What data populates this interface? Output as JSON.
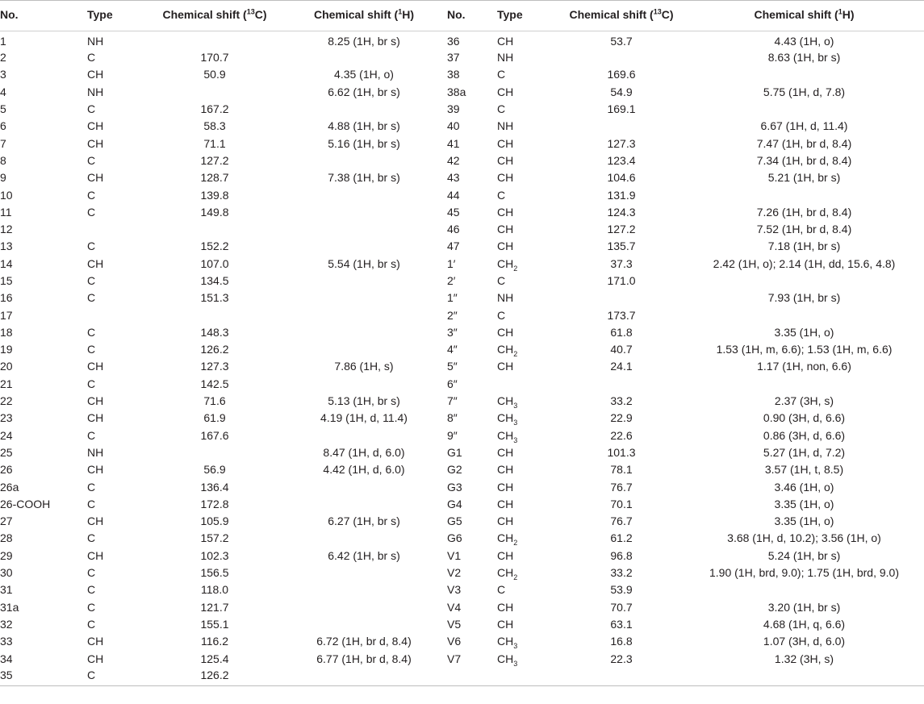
{
  "table": {
    "headers": {
      "no": "No.",
      "type": "Type",
      "c13_prefix": "Chemical shift (",
      "c13_sup": "13",
      "c13_suffix": "C)",
      "h1_prefix": "Chemical shift (",
      "h1_sup": "1",
      "h1_suffix": "H)"
    },
    "rows": [
      {
        "no": "1",
        "type": "NH",
        "typesub": "",
        "c13": "",
        "h1": "8.25 (1H, br s)",
        "no2": "36",
        "type2": "CH",
        "type2sub": "",
        "c13b": "53.7",
        "h1b": "4.43 (1H, o)"
      },
      {
        "no": "2",
        "type": "C",
        "typesub": "",
        "c13": "170.7",
        "h1": "",
        "no2": "37",
        "type2": "NH",
        "type2sub": "",
        "c13b": "",
        "h1b": "8.63 (1H, br s)"
      },
      {
        "no": "3",
        "type": "CH",
        "typesub": "",
        "c13": "50.9",
        "h1": "4.35 (1H, o)",
        "no2": "38",
        "type2": "C",
        "type2sub": "",
        "c13b": "169.6",
        "h1b": ""
      },
      {
        "no": "4",
        "type": "NH",
        "typesub": "",
        "c13": "",
        "h1": "6.62 (1H, br s)",
        "no2": "38a",
        "type2": "CH",
        "type2sub": "",
        "c13b": "54.9",
        "h1b": "5.75 (1H, d, 7.8)"
      },
      {
        "no": "5",
        "type": "C",
        "typesub": "",
        "c13": "167.2",
        "h1": "",
        "no2": "39",
        "type2": "C",
        "type2sub": "",
        "c13b": "169.1",
        "h1b": ""
      },
      {
        "no": "6",
        "type": "CH",
        "typesub": "",
        "c13": "58.3",
        "h1": "4.88 (1H, br s)",
        "no2": "40",
        "type2": "NH",
        "type2sub": "",
        "c13b": "",
        "h1b": "6.67 (1H, d, 11.4)"
      },
      {
        "no": "7",
        "type": "CH",
        "typesub": "",
        "c13": "71.1",
        "h1": "5.16 (1H, br s)",
        "no2": "41",
        "type2": "CH",
        "type2sub": "",
        "c13b": "127.3",
        "h1b": "7.47 (1H, br d, 8.4)"
      },
      {
        "no": "8",
        "type": "C",
        "typesub": "",
        "c13": "127.2",
        "h1": "",
        "no2": "42",
        "type2": "CH",
        "type2sub": "",
        "c13b": "123.4",
        "h1b": "7.34 (1H, br d, 8.4)"
      },
      {
        "no": "9",
        "type": "CH",
        "typesub": "",
        "c13": "128.7",
        "h1": "7.38 (1H, br s)",
        "no2": "43",
        "type2": "CH",
        "type2sub": "",
        "c13b": "104.6",
        "h1b": "5.21 (1H, br s)"
      },
      {
        "no": "10",
        "type": "C",
        "typesub": "",
        "c13": "139.8",
        "h1": "",
        "no2": "44",
        "type2": "C",
        "type2sub": "",
        "c13b": "131.9",
        "h1b": ""
      },
      {
        "no": "11",
        "type": "C",
        "typesub": "",
        "c13": "149.8",
        "h1": "",
        "no2": "45",
        "type2": "CH",
        "type2sub": "",
        "c13b": "124.3",
        "h1b": "7.26 (1H, br d, 8.4)"
      },
      {
        "no": "12",
        "type": "",
        "typesub": "",
        "c13": "",
        "h1": "",
        "no2": "46",
        "type2": "CH",
        "type2sub": "",
        "c13b": "127.2",
        "h1b": "7.52 (1H, br d, 8.4)"
      },
      {
        "no": "13",
        "type": "C",
        "typesub": "",
        "c13": "152.2",
        "h1": "",
        "no2": "47",
        "type2": "CH",
        "type2sub": "",
        "c13b": "135.7",
        "h1b": "7.18 (1H, br s)"
      },
      {
        "no": "14",
        "type": "CH",
        "typesub": "",
        "c13": "107.0",
        "h1": "5.54 (1H, br s)",
        "no2": "1′",
        "type2": "CH",
        "type2sub": "2",
        "c13b": "37.3",
        "h1b": "2.42 (1H, o); 2.14 (1H, dd, 15.6, 4.8)"
      },
      {
        "no": "15",
        "type": "C",
        "typesub": "",
        "c13": "134.5",
        "h1": "",
        "no2": "2′",
        "type2": "C",
        "type2sub": "",
        "c13b": "171.0",
        "h1b": ""
      },
      {
        "no": "16",
        "type": "C",
        "typesub": "",
        "c13": "151.3",
        "h1": "",
        "no2": "1″",
        "type2": "NH",
        "type2sub": "",
        "c13b": "",
        "h1b": "7.93 (1H, br s)"
      },
      {
        "no": "17",
        "type": "",
        "typesub": "",
        "c13": "",
        "h1": "",
        "no2": "2″",
        "type2": "C",
        "type2sub": "",
        "c13b": "173.7",
        "h1b": ""
      },
      {
        "no": "18",
        "type": "C",
        "typesub": "",
        "c13": "148.3",
        "h1": "",
        "no2": "3″",
        "type2": "CH",
        "type2sub": "",
        "c13b": "61.8",
        "h1b": "3.35 (1H, o)"
      },
      {
        "no": "19",
        "type": "C",
        "typesub": "",
        "c13": "126.2",
        "h1": "",
        "no2": "4″",
        "type2": "CH",
        "type2sub": "2",
        "c13b": "40.7",
        "h1b": "1.53 (1H, m, 6.6); 1.53 (1H, m, 6.6)"
      },
      {
        "no": "20",
        "type": "CH",
        "typesub": "",
        "c13": "127.3",
        "h1": "7.86 (1H, s)",
        "no2": "5″",
        "type2": "CH",
        "type2sub": "",
        "c13b": "24.1",
        "h1b": "1.17 (1H, non, 6.6)"
      },
      {
        "no": "21",
        "type": "C",
        "typesub": "",
        "c13": "142.5",
        "h1": "",
        "no2": "6″",
        "type2": "",
        "type2sub": "",
        "c13b": "",
        "h1b": ""
      },
      {
        "no": "22",
        "type": "CH",
        "typesub": "",
        "c13": "71.6",
        "h1": "5.13 (1H, br s)",
        "no2": "7″",
        "type2": "CH",
        "type2sub": "3",
        "c13b": "33.2",
        "h1b": "2.37 (3H, s)"
      },
      {
        "no": "23",
        "type": "CH",
        "typesub": "",
        "c13": "61.9",
        "h1": "4.19 (1H, d, 11.4)",
        "no2": "8″",
        "type2": "CH",
        "type2sub": "3",
        "c13b": "22.9",
        "h1b": "0.90 (3H, d, 6.6)"
      },
      {
        "no": "24",
        "type": "C",
        "typesub": "",
        "c13": "167.6",
        "h1": "",
        "no2": "9″",
        "type2": "CH",
        "type2sub": "3",
        "c13b": "22.6",
        "h1b": "0.86 (3H, d, 6.6)"
      },
      {
        "no": "25",
        "type": "NH",
        "typesub": "",
        "c13": "",
        "h1": "8.47 (1H, d, 6.0)",
        "no2": "G1",
        "type2": "CH",
        "type2sub": "",
        "c13b": "101.3",
        "h1b": "5.27 (1H, d, 7.2)"
      },
      {
        "no": "26",
        "type": "CH",
        "typesub": "",
        "c13": "56.9",
        "h1": "4.42 (1H, d, 6.0)",
        "no2": "G2",
        "type2": "CH",
        "type2sub": "",
        "c13b": "78.1",
        "h1b": "3.57 (1H, t, 8.5)"
      },
      {
        "no": "26a",
        "type": "C",
        "typesub": "",
        "c13": "136.4",
        "h1": "",
        "no2": "G3",
        "type2": "CH",
        "type2sub": "",
        "c13b": "76.7",
        "h1b": "3.46 (1H, o)"
      },
      {
        "no": "26-COOH",
        "type": "C",
        "typesub": "",
        "c13": "172.8",
        "h1": "",
        "no2": "G4",
        "type2": "CH",
        "type2sub": "",
        "c13b": "70.1",
        "h1b": "3.35 (1H, o)"
      },
      {
        "no": "27",
        "type": "CH",
        "typesub": "",
        "c13": "105.9",
        "h1": "6.27 (1H, br s)",
        "no2": "G5",
        "type2": "CH",
        "type2sub": "",
        "c13b": "76.7",
        "h1b": "3.35 (1H, o)"
      },
      {
        "no": "28",
        "type": "C",
        "typesub": "",
        "c13": "157.2",
        "h1": "",
        "no2": "G6",
        "type2": "CH",
        "type2sub": "2",
        "c13b": "61.2",
        "h1b": "3.68 (1H, d, 10.2); 3.56 (1H, o)"
      },
      {
        "no": "29",
        "type": "CH",
        "typesub": "",
        "c13": "102.3",
        "h1": "6.42 (1H, br s)",
        "no2": "V1",
        "type2": "CH",
        "type2sub": "",
        "c13b": "96.8",
        "h1b": "5.24 (1H, br s)"
      },
      {
        "no": "30",
        "type": "C",
        "typesub": "",
        "c13": "156.5",
        "h1": "",
        "no2": "V2",
        "type2": "CH",
        "type2sub": "2",
        "c13b": "33.2",
        "h1b": "1.90 (1H, brd, 9.0); 1.75 (1H, brd, 9.0)"
      },
      {
        "no": "31",
        "type": "C",
        "typesub": "",
        "c13": "118.0",
        "h1": "",
        "no2": "V3",
        "type2": "C",
        "type2sub": "",
        "c13b": "53.9",
        "h1b": ""
      },
      {
        "no": "31a",
        "type": "C",
        "typesub": "",
        "c13": "121.7",
        "h1": "",
        "no2": "V4",
        "type2": "CH",
        "type2sub": "",
        "c13b": "70.7",
        "h1b": "3.20 (1H, br s)"
      },
      {
        "no": "32",
        "type": "C",
        "typesub": "",
        "c13": "155.1",
        "h1": "",
        "no2": "V5",
        "type2": "CH",
        "type2sub": "",
        "c13b": "63.1",
        "h1b": "4.68 (1H, q, 6.6)"
      },
      {
        "no": "33",
        "type": "CH",
        "typesub": "",
        "c13": "116.2",
        "h1": "6.72 (1H, br d, 8.4)",
        "no2": "V6",
        "type2": "CH",
        "type2sub": "3",
        "c13b": "16.8",
        "h1b": "1.07 (3H, d, 6.0)"
      },
      {
        "no": "34",
        "type": "CH",
        "typesub": "",
        "c13": "125.4",
        "h1": "6.77 (1H, br d, 8.4)",
        "no2": "V7",
        "type2": "CH",
        "type2sub": "3",
        "c13b": "22.3",
        "h1b": "1.32 (3H, s)"
      },
      {
        "no": "35",
        "type": "C",
        "typesub": "",
        "c13": "126.2",
        "h1": "",
        "no2": "",
        "type2": "",
        "type2sub": "",
        "c13b": "",
        "h1b": ""
      }
    ]
  }
}
